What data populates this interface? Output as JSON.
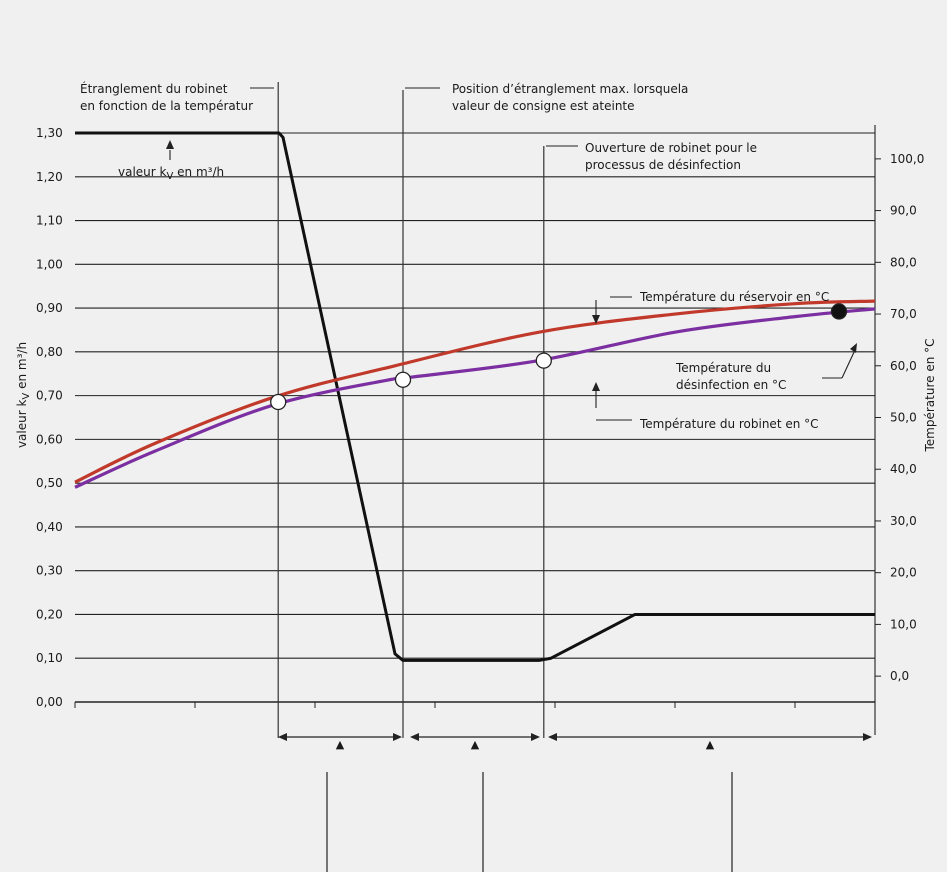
{
  "chart_data": {
    "type": "line",
    "left_axis": {
      "label_pre": "valeur k",
      "label_sub": "V",
      "label_post": " en m³/h",
      "range": [
        0.0,
        1.3
      ],
      "ticks": [
        "0,00",
        "0,10",
        "0,20",
        "0,30",
        "0,40",
        "0,50",
        "0,60",
        "0,70",
        "0,80",
        "0,90",
        "1,00",
        "1,10",
        "1,20",
        "1,30"
      ]
    },
    "right_axis": {
      "label": "Température en °C",
      "range": [
        -5,
        105
      ],
      "ticks": [
        "0,0",
        "10,0",
        "20,0",
        "30,0",
        "40,0",
        "50,0",
        "60,0",
        "70,0",
        "80,0",
        "90,0",
        "100,0"
      ]
    },
    "series": [
      {
        "key": "kv",
        "axis": "left",
        "color": "#111111",
        "points": [
          [
            0,
            1.3
          ],
          [
            0.255,
            1.3
          ],
          [
            0.26,
            1.29
          ],
          [
            0.4,
            0.11
          ],
          [
            0.41,
            0.095
          ],
          [
            0.58,
            0.095
          ],
          [
            0.595,
            0.1
          ],
          [
            0.7,
            0.2
          ],
          [
            1,
            0.2
          ]
        ]
      },
      {
        "key": "reservoir",
        "axis": "right",
        "color": "#c0392b",
        "points": [
          [
            0,
            37.5
          ],
          [
            0.1,
            45.0
          ],
          [
            0.25,
            54.0
          ],
          [
            0.4,
            60.0
          ],
          [
            0.58,
            66.5
          ],
          [
            0.75,
            70.0
          ],
          [
            0.9,
            72.0
          ],
          [
            1,
            72.5
          ]
        ]
      },
      {
        "key": "robinet",
        "axis": "right",
        "color": "#7b2fa0",
        "points": [
          [
            0,
            36.5
          ],
          [
            0.1,
            43.5
          ],
          [
            0.25,
            52.5
          ],
          [
            0.4,
            57.5
          ],
          [
            0.42,
            57.8
          ],
          [
            0.58,
            61.0
          ],
          [
            0.75,
            66.5
          ],
          [
            0.9,
            69.5
          ],
          [
            1,
            71.0
          ]
        ]
      }
    ],
    "markers": [
      {
        "x": 0.254,
        "y": 53.0,
        "filled": false
      },
      {
        "x": 0.41,
        "y": 57.3,
        "filled": false
      },
      {
        "x": 0.586,
        "y": 61.0,
        "filled": false
      },
      {
        "x": 0.955,
        "y": 70.5,
        "filled": true
      }
    ],
    "annotations": {
      "throttle_temp": [
        "Étranglement du robinet",
        "en fonction de la températur"
      ],
      "throttle_max": [
        "Position d’étranglement max. lorsquela",
        "valeur de consigne est ateinte"
      ],
      "disinfection_open": [
        "Ouverture de robinet pour le",
        "processus de désinfection"
      ],
      "kv_value": {
        "pre": "valeur k",
        "sub": "V",
        "post": " en m³/h"
      },
      "reservoir_temp": "Température du réservoir en °C",
      "disinfection_temp": [
        "Température du",
        "désinfection en °C"
      ],
      "tap_temp": "Température du robinet en °C"
    },
    "phases": [
      "▲",
      "▲",
      "▲"
    ],
    "grid": true
  }
}
